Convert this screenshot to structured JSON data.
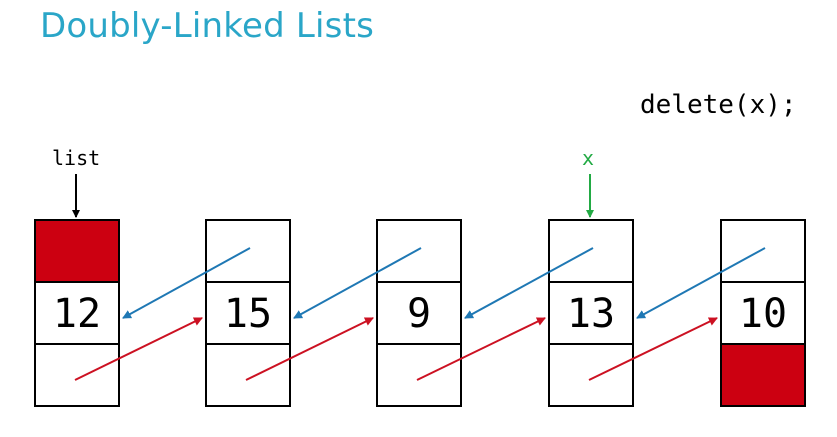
{
  "title": "Doubly-Linked Lists",
  "code": "delete(x);",
  "list_label": "list",
  "x_label": "x",
  "colors": {
    "title": "#2aa6c8",
    "null_fill": "#cc0011",
    "prev_arrow": "#1f78b4",
    "next_arrow": "#cc1122",
    "x_pointer": "#22aa44"
  },
  "nodes": [
    {
      "value": "12",
      "prev_null": true,
      "next_null": false
    },
    {
      "value": "15",
      "prev_null": false,
      "next_null": false
    },
    {
      "value": "9",
      "prev_null": false,
      "next_null": false
    },
    {
      "value": "13",
      "prev_null": false,
      "next_null": false
    },
    {
      "value": "10",
      "prev_null": false,
      "next_null": true
    }
  ]
}
